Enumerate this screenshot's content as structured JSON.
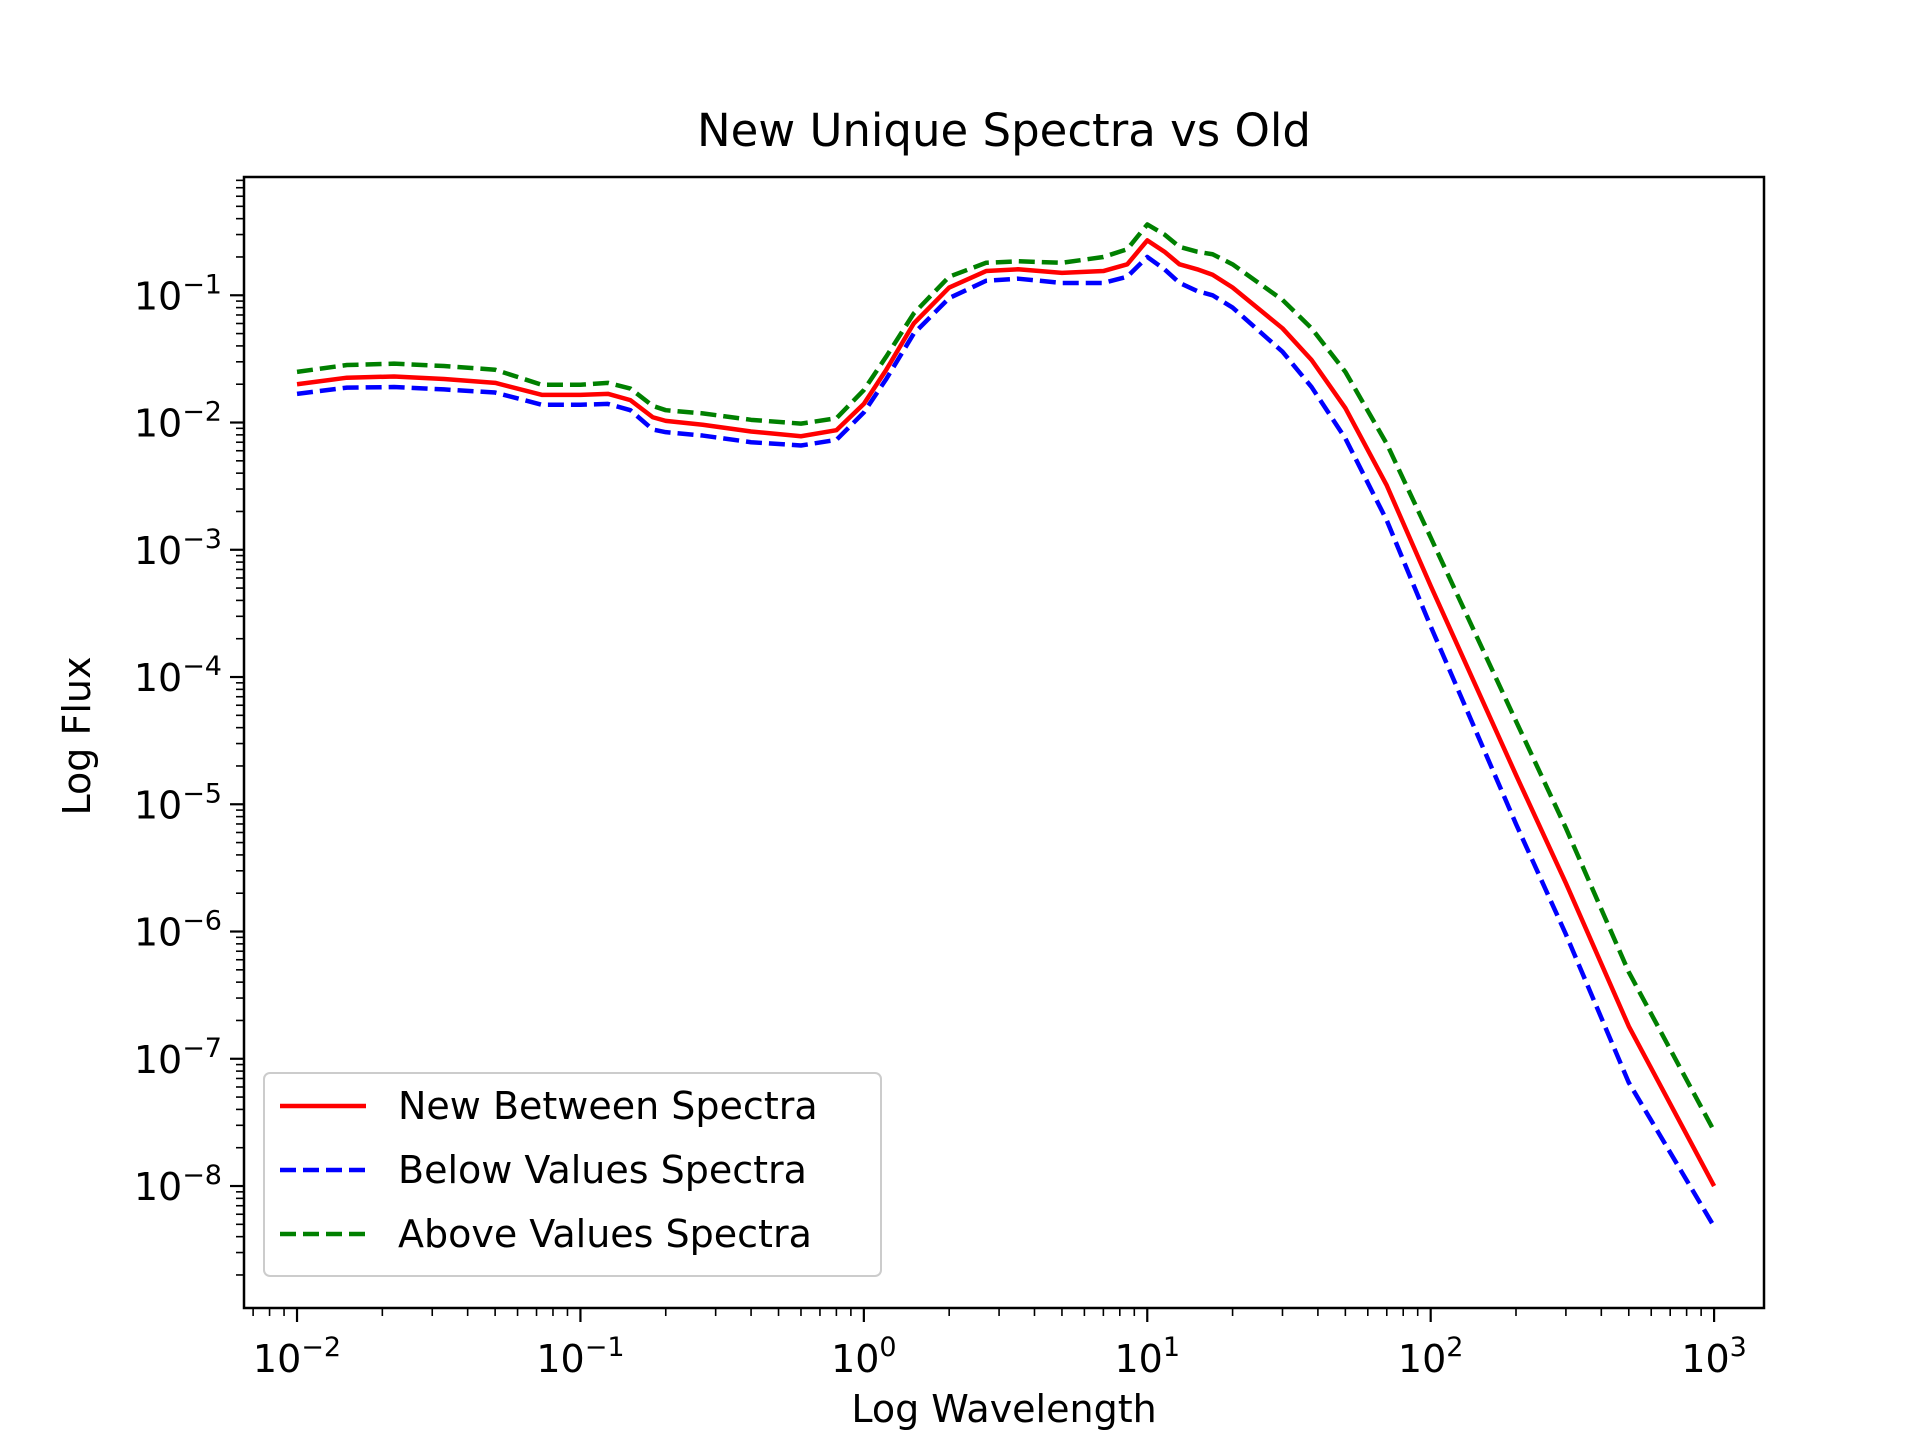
{
  "chart_data": {
    "type": "line",
    "title": "New Unique Spectra vs Old",
    "xlabel": "Log Wavelength",
    "ylabel": "Log Flux",
    "x_scale": "log",
    "y_scale": "log",
    "xlim": [
      0.0065,
      1500
    ],
    "ylim": [
      1.1e-09,
      0.85
    ],
    "x_ticks": [
      {
        "value": 0.01,
        "base": "10",
        "exp": "−2"
      },
      {
        "value": 0.1,
        "base": "10",
        "exp": "−1"
      },
      {
        "value": 1,
        "base": "10",
        "exp": "0"
      },
      {
        "value": 10,
        "base": "10",
        "exp": "1"
      },
      {
        "value": 100,
        "base": "10",
        "exp": "2"
      },
      {
        "value": 1000,
        "base": "10",
        "exp": "3"
      }
    ],
    "y_ticks": [
      {
        "value": 1e-08,
        "base": "10",
        "exp": "−8"
      },
      {
        "value": 1e-07,
        "base": "10",
        "exp": "−7"
      },
      {
        "value": 1e-06,
        "base": "10",
        "exp": "−6"
      },
      {
        "value": 1e-05,
        "base": "10",
        "exp": "−5"
      },
      {
        "value": 0.0001,
        "base": "10",
        "exp": "−4"
      },
      {
        "value": 0.001,
        "base": "10",
        "exp": "−3"
      },
      {
        "value": 0.01,
        "base": "10",
        "exp": "−2"
      },
      {
        "value": 0.1,
        "base": "10",
        "exp": "−1"
      }
    ],
    "grid": false,
    "legend_position": "lower-left",
    "x": [
      0.01,
      0.015,
      0.022,
      0.033,
      0.05,
      0.073,
      0.1,
      0.125,
      0.15,
      0.18,
      0.2,
      0.27,
      0.4,
      0.6,
      0.8,
      1.0,
      1.2,
      1.5,
      2.0,
      2.7,
      3.5,
      5.0,
      7.0,
      8.5,
      10.0,
      11.5,
      13.0,
      15.0,
      17.0,
      20.0,
      30.0,
      38.0,
      50.0,
      70.0,
      100.0,
      200.0,
      300.0,
      500.0,
      1000.0
    ],
    "series": [
      {
        "name": "New Between Spectra",
        "color": "#ff0000",
        "dash": "solid",
        "values": [
          0.02,
          0.0225,
          0.023,
          0.022,
          0.0205,
          0.0165,
          0.0165,
          0.0168,
          0.015,
          0.011,
          0.0103,
          0.0096,
          0.0085,
          0.0078,
          0.0087,
          0.014,
          0.026,
          0.06,
          0.115,
          0.155,
          0.16,
          0.15,
          0.155,
          0.175,
          0.27,
          0.22,
          0.175,
          0.16,
          0.145,
          0.115,
          0.055,
          0.031,
          0.013,
          0.0032,
          0.00052,
          1.7e-05,
          2.4e-06,
          1.8e-07,
          1e-08
        ]
      },
      {
        "name": "Below Values Spectra",
        "color": "#0000ff",
        "dash": "dashed",
        "values": [
          0.0168,
          0.0188,
          0.019,
          0.0182,
          0.0172,
          0.0138,
          0.0138,
          0.014,
          0.0125,
          0.0088,
          0.0084,
          0.0079,
          0.007,
          0.0066,
          0.0073,
          0.012,
          0.022,
          0.05,
          0.095,
          0.13,
          0.135,
          0.125,
          0.125,
          0.14,
          0.2,
          0.16,
          0.125,
          0.108,
          0.1,
          0.08,
          0.036,
          0.019,
          0.0075,
          0.0017,
          0.00025,
          7e-06,
          9.5e-07,
          6.5e-08,
          4.8e-09
        ]
      },
      {
        "name": "Above Values Spectra",
        "color": "#008000",
        "dash": "dashed",
        "values": [
          0.025,
          0.0283,
          0.029,
          0.0278,
          0.026,
          0.0198,
          0.0198,
          0.0205,
          0.0185,
          0.0135,
          0.0125,
          0.0118,
          0.0105,
          0.0098,
          0.0108,
          0.018,
          0.033,
          0.072,
          0.14,
          0.18,
          0.185,
          0.18,
          0.2,
          0.23,
          0.36,
          0.3,
          0.24,
          0.22,
          0.21,
          0.175,
          0.092,
          0.055,
          0.025,
          0.0068,
          0.00125,
          4.5e-05,
          6.5e-06,
          4.8e-07,
          2.7e-08
        ]
      }
    ]
  }
}
